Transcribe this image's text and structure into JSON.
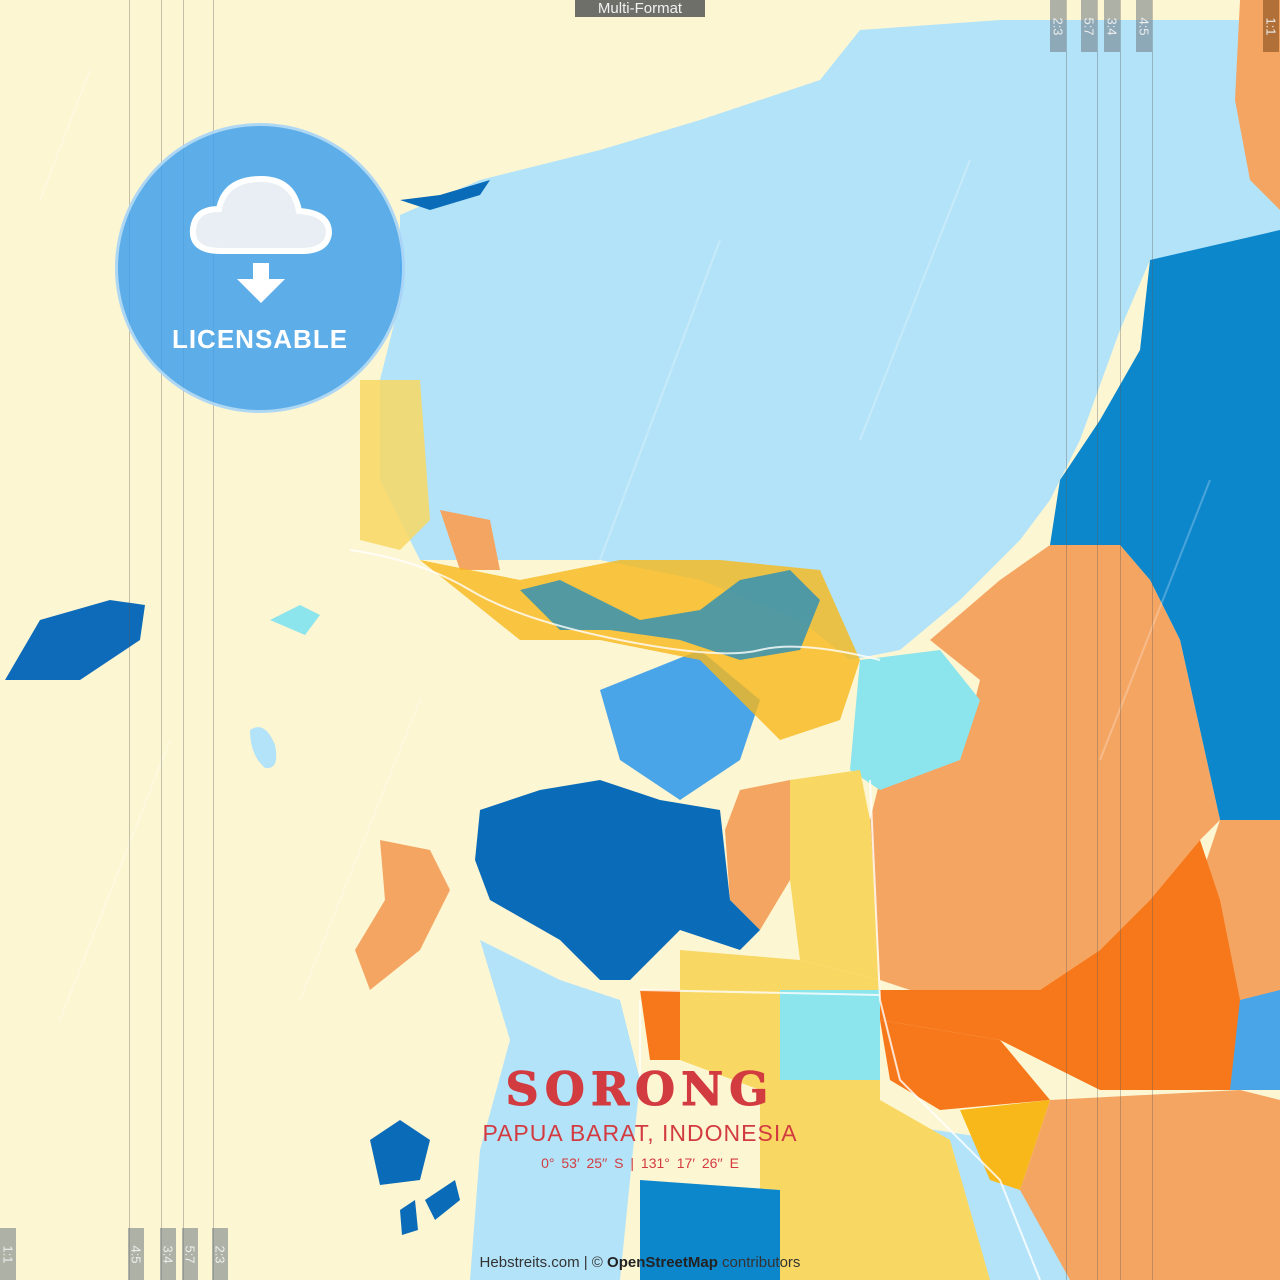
{
  "header": {
    "format_tag": "Multi-Format"
  },
  "ratios": {
    "left": [
      "1:1",
      "4:5",
      "3:4",
      "5:7",
      "2:3"
    ],
    "right": [
      "2:3",
      "5:7",
      "3:4",
      "4:5",
      "1:1"
    ]
  },
  "badge": {
    "icon": "cloud-download-icon",
    "label": "LICENSABLE"
  },
  "poster": {
    "city": "SORONG",
    "region": "PAPUA BARAT, INDONESIA",
    "coordinates": "0° 53′ 25′′ S | 131° 17′ 26′′ E"
  },
  "credit": {
    "site": "Hebstreits.com",
    "separator": " | © ",
    "osm": "OpenStreetMap",
    "suffix": " contributors"
  },
  "colors": {
    "land": "#fdf6d3",
    "water": "#b3e3f8",
    "dark_blue": "#0a6bb8",
    "blue": "#0d87cc",
    "orange": "#f5a562",
    "deep_orange": "#f7781a",
    "yellow": "#f8d863",
    "cyan": "#8ce4ec",
    "title_red": "#d23b40"
  }
}
